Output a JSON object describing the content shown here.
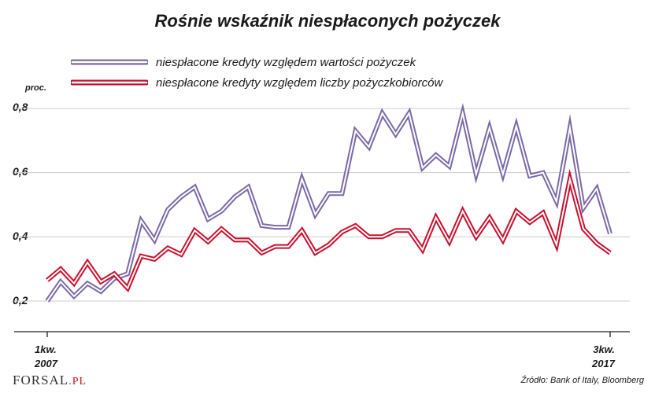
{
  "chart_data": {
    "type": "line",
    "title": "Rośnie wskaźnik niespłaconych pożyczek",
    "ylabel": "proc.",
    "ylim": [
      0.2,
      0.8
    ],
    "yticks": [
      "0,2",
      "0,4",
      "0,6",
      "0,8"
    ],
    "xlabel_start": [
      "1kw.",
      "2007"
    ],
    "xlabel_end": [
      "3kw.",
      "2017"
    ],
    "grid": true,
    "legend_position": "top-left",
    "series": [
      {
        "name": "niespłacone kredyty względem wartości pożyczek",
        "color": "#7b6aa6",
        "values": [
          0.2,
          0.26,
          0.215,
          0.255,
          0.23,
          0.27,
          0.285,
          0.45,
          0.39,
          0.485,
          0.525,
          0.555,
          0.455,
          0.48,
          0.525,
          0.555,
          0.435,
          0.43,
          0.43,
          0.58,
          0.47,
          0.535,
          0.535,
          0.73,
          0.68,
          0.785,
          0.72,
          0.785,
          0.615,
          0.655,
          0.62,
          0.785,
          0.595,
          0.74,
          0.595,
          0.745,
          0.59,
          0.6,
          0.51,
          0.74,
          0.49,
          0.55,
          0.41
        ]
      },
      {
        "name": "niespłacone kredyty względem liczby pożyczkobiorców",
        "color": "#c8102e",
        "values": [
          0.265,
          0.3,
          0.255,
          0.32,
          0.26,
          0.285,
          0.24,
          0.34,
          0.33,
          0.365,
          0.345,
          0.42,
          0.385,
          0.425,
          0.39,
          0.39,
          0.35,
          0.37,
          0.37,
          0.42,
          0.35,
          0.375,
          0.415,
          0.435,
          0.4,
          0.4,
          0.42,
          0.42,
          0.36,
          0.46,
          0.385,
          0.48,
          0.4,
          0.46,
          0.39,
          0.48,
          0.445,
          0.475,
          0.375,
          0.58,
          0.425,
          0.38,
          0.35
        ]
      }
    ]
  },
  "source": "Źródło: Bank of Italy, Bloomberg",
  "logo": {
    "main": "FORSAL",
    "suffix": ".PL"
  }
}
